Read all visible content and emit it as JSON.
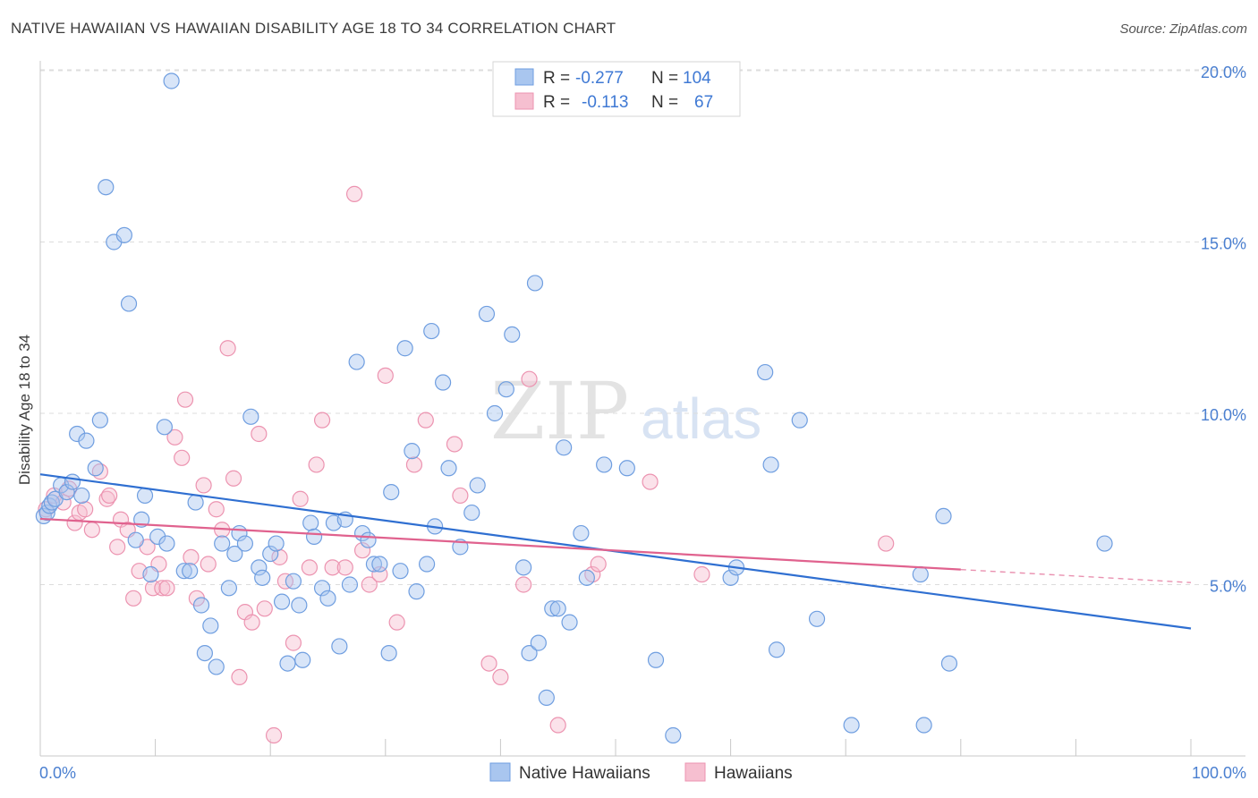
{
  "header": {
    "title": "NATIVE HAWAIIAN VS HAWAIIAN DISABILITY AGE 18 TO 34 CORRELATION CHART",
    "source": "Source: ZipAtlas.com"
  },
  "watermark": {
    "zip": "ZIP",
    "atlas": "atlas"
  },
  "colors": {
    "blue_fill": "#a9c6ef",
    "blue_stroke": "#6f9ee0",
    "blue_line": "#2f6fd1",
    "pink_fill": "#f6bfd0",
    "pink_stroke": "#ec93b0",
    "pink_line": "#e0628e",
    "tick_text": "#4a7fd0",
    "grid": "#dcdcdc"
  },
  "legend": {
    "rows": [
      {
        "r_label": "R =",
        "r_value": "-0.277",
        "n_label": "N =",
        "n_value": "104",
        "series": "blue"
      },
      {
        "r_label": "R =",
        "r_value": "-0.113",
        "n_label": "N =",
        "n_value": "67",
        "series": "pink"
      }
    ]
  },
  "chart_data": {
    "type": "scatter",
    "title": "NATIVE HAWAIIAN VS HAWAIIAN DISABILITY AGE 18 TO 34 CORRELATION CHART",
    "xlabel": "",
    "ylabel": "Disability Age 18 to 34",
    "xlim": [
      0,
      100
    ],
    "ylim": [
      0,
      20.5
    ],
    "x_tick_labels": [
      {
        "value": 0,
        "label": "0.0%"
      },
      {
        "value": 100,
        "label": "100.0%"
      }
    ],
    "y_tick_labels": [
      {
        "value": 5,
        "label": "5.0%"
      },
      {
        "value": 10,
        "label": "10.0%"
      },
      {
        "value": 15,
        "label": "15.0%"
      },
      {
        "value": 20,
        "label": "20.0%"
      }
    ],
    "series": [
      {
        "name": "Native Hawaiians",
        "color": "#6f9ee0",
        "r": -0.277,
        "n": 104,
        "trend": {
          "x0": 0,
          "y0": 8.22,
          "x1": 100,
          "y1": 3.72
        },
        "points": [
          [
            0.3,
            7.0
          ],
          [
            0.6,
            7.1
          ],
          [
            0.8,
            7.3
          ],
          [
            1.0,
            7.4
          ],
          [
            1.3,
            7.5
          ],
          [
            1.8,
            7.9
          ],
          [
            2.3,
            7.7
          ],
          [
            2.8,
            8.0
          ],
          [
            3.2,
            9.4
          ],
          [
            3.6,
            7.6
          ],
          [
            4.0,
            9.2
          ],
          [
            4.8,
            8.4
          ],
          [
            5.2,
            9.8
          ],
          [
            5.7,
            16.6
          ],
          [
            6.4,
            15.0
          ],
          [
            7.3,
            15.2
          ],
          [
            7.7,
            13.2
          ],
          [
            8.3,
            6.3
          ],
          [
            8.8,
            6.9
          ],
          [
            9.1,
            7.6
          ],
          [
            9.6,
            5.3
          ],
          [
            10.2,
            6.4
          ],
          [
            10.8,
            9.6
          ],
          [
            11.0,
            6.2
          ],
          [
            11.4,
            19.7
          ],
          [
            12.5,
            5.4
          ],
          [
            13.0,
            5.4
          ],
          [
            13.5,
            7.4
          ],
          [
            14.0,
            4.4
          ],
          [
            14.3,
            3.0
          ],
          [
            14.8,
            3.8
          ],
          [
            15.3,
            2.6
          ],
          [
            15.8,
            6.2
          ],
          [
            16.4,
            4.9
          ],
          [
            16.9,
            5.9
          ],
          [
            17.3,
            6.5
          ],
          [
            17.8,
            6.2
          ],
          [
            18.3,
            9.9
          ],
          [
            19.0,
            5.5
          ],
          [
            19.3,
            5.2
          ],
          [
            20.0,
            5.9
          ],
          [
            20.5,
            6.2
          ],
          [
            21.0,
            4.5
          ],
          [
            21.5,
            2.7
          ],
          [
            22.0,
            5.1
          ],
          [
            22.5,
            4.4
          ],
          [
            22.8,
            2.8
          ],
          [
            23.5,
            6.8
          ],
          [
            23.8,
            6.4
          ],
          [
            24.5,
            4.9
          ],
          [
            25.0,
            4.6
          ],
          [
            25.5,
            6.8
          ],
          [
            26.0,
            3.2
          ],
          [
            26.5,
            6.9
          ],
          [
            26.9,
            5.0
          ],
          [
            27.5,
            11.5
          ],
          [
            28.0,
            6.5
          ],
          [
            28.5,
            6.3
          ],
          [
            29.0,
            5.6
          ],
          [
            29.5,
            5.6
          ],
          [
            30.3,
            3.0
          ],
          [
            30.5,
            7.7
          ],
          [
            31.3,
            5.4
          ],
          [
            31.7,
            11.9
          ],
          [
            32.3,
            8.9
          ],
          [
            32.7,
            4.8
          ],
          [
            33.6,
            5.6
          ],
          [
            34.0,
            12.4
          ],
          [
            34.3,
            6.7
          ],
          [
            35.0,
            10.9
          ],
          [
            35.5,
            8.4
          ],
          [
            36.5,
            6.1
          ],
          [
            37.5,
            7.1
          ],
          [
            38.0,
            7.9
          ],
          [
            38.8,
            12.9
          ],
          [
            39.5,
            10.0
          ],
          [
            40.5,
            10.7
          ],
          [
            41.0,
            12.3
          ],
          [
            42.0,
            5.5
          ],
          [
            42.5,
            3.0
          ],
          [
            43.0,
            13.8
          ],
          [
            43.3,
            3.3
          ],
          [
            44.0,
            1.7
          ],
          [
            44.5,
            4.3
          ],
          [
            45.0,
            4.3
          ],
          [
            45.5,
            9.0
          ],
          [
            46.0,
            3.9
          ],
          [
            47.0,
            6.5
          ],
          [
            47.5,
            5.2
          ],
          [
            49.0,
            8.5
          ],
          [
            51.0,
            8.4
          ],
          [
            53.5,
            2.8
          ],
          [
            55.0,
            0.6
          ],
          [
            60.0,
            5.2
          ],
          [
            60.5,
            5.5
          ],
          [
            63.0,
            11.2
          ],
          [
            63.5,
            8.5
          ],
          [
            64.0,
            3.1
          ],
          [
            66.0,
            9.8
          ],
          [
            67.5,
            4.0
          ],
          [
            70.5,
            0.9
          ],
          [
            76.5,
            5.3
          ],
          [
            76.8,
            0.9
          ],
          [
            78.5,
            7.0
          ],
          [
            79.0,
            2.7
          ],
          [
            92.5,
            6.2
          ]
        ]
      },
      {
        "name": "Hawaiians",
        "color": "#ec93b0",
        "r": -0.113,
        "n": 67,
        "trend": {
          "x0": 0,
          "y0": 6.92,
          "x1": 80,
          "y1": 5.44,
          "dashed_to_x": 100,
          "dashed_to_y": 5.06
        },
        "points": [
          [
            0.5,
            7.2
          ],
          [
            1.2,
            7.6
          ],
          [
            2.0,
            7.4
          ],
          [
            2.5,
            7.8
          ],
          [
            3.0,
            6.8
          ],
          [
            3.4,
            7.1
          ],
          [
            3.9,
            7.2
          ],
          [
            4.5,
            6.6
          ],
          [
            5.2,
            8.3
          ],
          [
            5.8,
            7.5
          ],
          [
            6.0,
            7.6
          ],
          [
            6.7,
            6.1
          ],
          [
            7.0,
            6.9
          ],
          [
            7.6,
            6.6
          ],
          [
            8.1,
            4.6
          ],
          [
            8.6,
            5.4
          ],
          [
            9.3,
            6.1
          ],
          [
            9.8,
            4.9
          ],
          [
            10.3,
            5.6
          ],
          [
            10.6,
            4.9
          ],
          [
            11.0,
            4.9
          ],
          [
            11.7,
            9.3
          ],
          [
            12.3,
            8.7
          ],
          [
            12.6,
            10.4
          ],
          [
            13.1,
            5.8
          ],
          [
            13.6,
            4.6
          ],
          [
            14.2,
            7.9
          ],
          [
            14.6,
            5.6
          ],
          [
            15.3,
            7.2
          ],
          [
            15.8,
            6.6
          ],
          [
            16.3,
            11.9
          ],
          [
            16.8,
            8.1
          ],
          [
            17.3,
            2.3
          ],
          [
            17.8,
            4.2
          ],
          [
            18.4,
            3.9
          ],
          [
            19.0,
            9.4
          ],
          [
            19.5,
            4.3
          ],
          [
            20.3,
            0.6
          ],
          [
            20.8,
            5.8
          ],
          [
            21.3,
            5.1
          ],
          [
            22.0,
            3.3
          ],
          [
            22.6,
            7.5
          ],
          [
            23.4,
            5.5
          ],
          [
            24.0,
            8.5
          ],
          [
            24.5,
            9.8
          ],
          [
            25.4,
            5.5
          ],
          [
            26.5,
            5.5
          ],
          [
            27.3,
            16.4
          ],
          [
            28.0,
            6.0
          ],
          [
            28.6,
            5.0
          ],
          [
            29.5,
            5.3
          ],
          [
            30.0,
            11.1
          ],
          [
            31.0,
            3.9
          ],
          [
            32.5,
            8.5
          ],
          [
            33.5,
            9.8
          ],
          [
            36.0,
            9.1
          ],
          [
            36.5,
            7.6
          ],
          [
            39.0,
            2.7
          ],
          [
            40.0,
            2.3
          ],
          [
            42.0,
            5.0
          ],
          [
            42.5,
            11.0
          ],
          [
            45.0,
            0.9
          ],
          [
            48.0,
            5.3
          ],
          [
            48.5,
            5.6
          ],
          [
            53.0,
            8.0
          ],
          [
            57.5,
            5.3
          ],
          [
            73.5,
            6.2
          ]
        ]
      }
    ]
  },
  "bottom_legend": {
    "items": [
      "Native Hawaiians",
      "Hawaiians"
    ]
  }
}
